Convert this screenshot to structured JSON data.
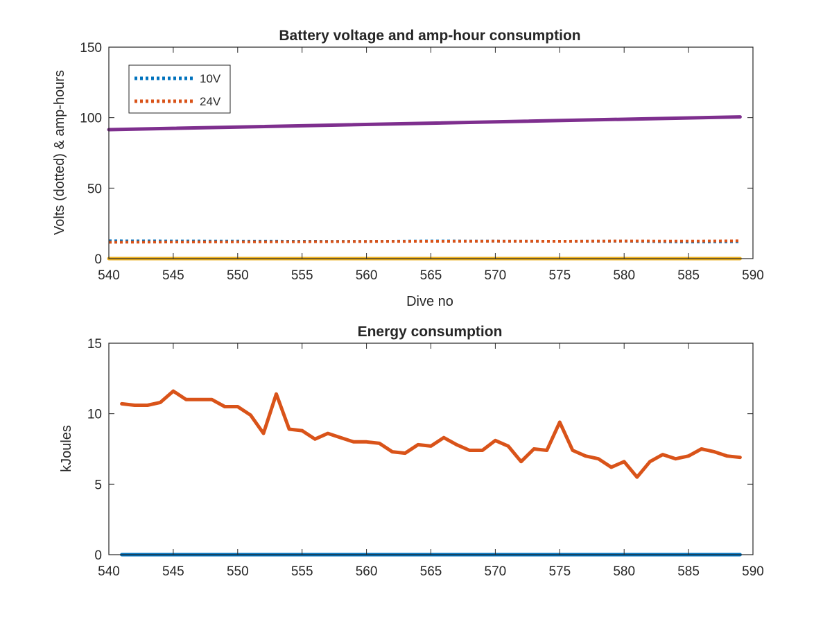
{
  "chart_data": [
    {
      "type": "line",
      "title": "Battery voltage and amp-hour consumption",
      "xlabel": "Dive no",
      "ylabel": "Volts (dotted) & amp-hours",
      "xlim": [
        540,
        590
      ],
      "ylim": [
        0,
        150
      ],
      "xticks": [
        540,
        545,
        550,
        555,
        560,
        565,
        570,
        575,
        580,
        585,
        590
      ],
      "yticks": [
        0,
        50,
        100,
        150
      ],
      "grid": false,
      "legend": "top-left",
      "series": [
        {
          "name": "10V",
          "color": "#0072BD",
          "style": "dotted",
          "x": [
            540,
            545,
            550,
            555,
            560,
            565,
            570,
            575,
            580,
            585,
            589
          ],
          "y": [
            12.6,
            12.5,
            12.4,
            12.3,
            12.2,
            12.5,
            12.4,
            12.3,
            12.4,
            11.8,
            12.0
          ]
        },
        {
          "name": "24V",
          "color": "#D95319",
          "style": "dotted",
          "x": [
            540,
            545,
            550,
            555,
            560,
            565,
            570,
            575,
            580,
            585,
            589
          ],
          "y": [
            11.6,
            11.8,
            11.9,
            12.0,
            12.2,
            12.3,
            12.4,
            12.3,
            12.5,
            12.4,
            12.6
          ]
        },
        {
          "color": "#7E2F8E",
          "style": "solid",
          "x": [
            540,
            589
          ],
          "y": [
            91.5,
            100.5
          ]
        },
        {
          "color": "#EDB120",
          "style": "solid",
          "x": [
            540,
            589
          ],
          "y": [
            0,
            0
          ]
        }
      ]
    },
    {
      "type": "line",
      "title": "Energy consumption",
      "xlabel": "",
      "ylabel": "kJoules",
      "xlim": [
        540,
        590
      ],
      "ylim": [
        0,
        15
      ],
      "xticks": [
        540,
        545,
        550,
        555,
        560,
        565,
        570,
        575,
        580,
        585,
        590
      ],
      "yticks": [
        0,
        5,
        10,
        15
      ],
      "grid": false,
      "series": [
        {
          "color": "#0072BD",
          "style": "solid",
          "x": [
            541,
            589
          ],
          "y": [
            0,
            0
          ]
        },
        {
          "color": "#D95319",
          "style": "solid",
          "x": [
            541,
            542,
            543,
            544,
            545,
            546,
            547,
            548,
            549,
            550,
            551,
            552,
            553,
            554,
            555,
            556,
            557,
            558,
            559,
            560,
            561,
            562,
            563,
            564,
            565,
            566,
            567,
            568,
            569,
            570,
            571,
            572,
            573,
            574,
            575,
            576,
            577,
            578,
            579,
            580,
            581,
            582,
            583,
            584,
            585,
            586,
            587,
            588,
            589
          ],
          "y": [
            10.7,
            10.6,
            10.6,
            10.8,
            11.6,
            11.0,
            11.0,
            11.0,
            10.5,
            10.5,
            9.9,
            8.6,
            11.4,
            8.9,
            8.8,
            8.2,
            8.6,
            8.3,
            8.0,
            8.0,
            7.9,
            7.3,
            7.2,
            7.8,
            7.7,
            8.3,
            7.8,
            7.4,
            7.4,
            8.1,
            7.7,
            6.6,
            7.5,
            7.4,
            9.4,
            7.4,
            7.0,
            6.8,
            6.2,
            6.6,
            5.5,
            6.6,
            7.1,
            6.8,
            7.0,
            7.5,
            7.3,
            7.0,
            6.9
          ]
        }
      ]
    }
  ]
}
